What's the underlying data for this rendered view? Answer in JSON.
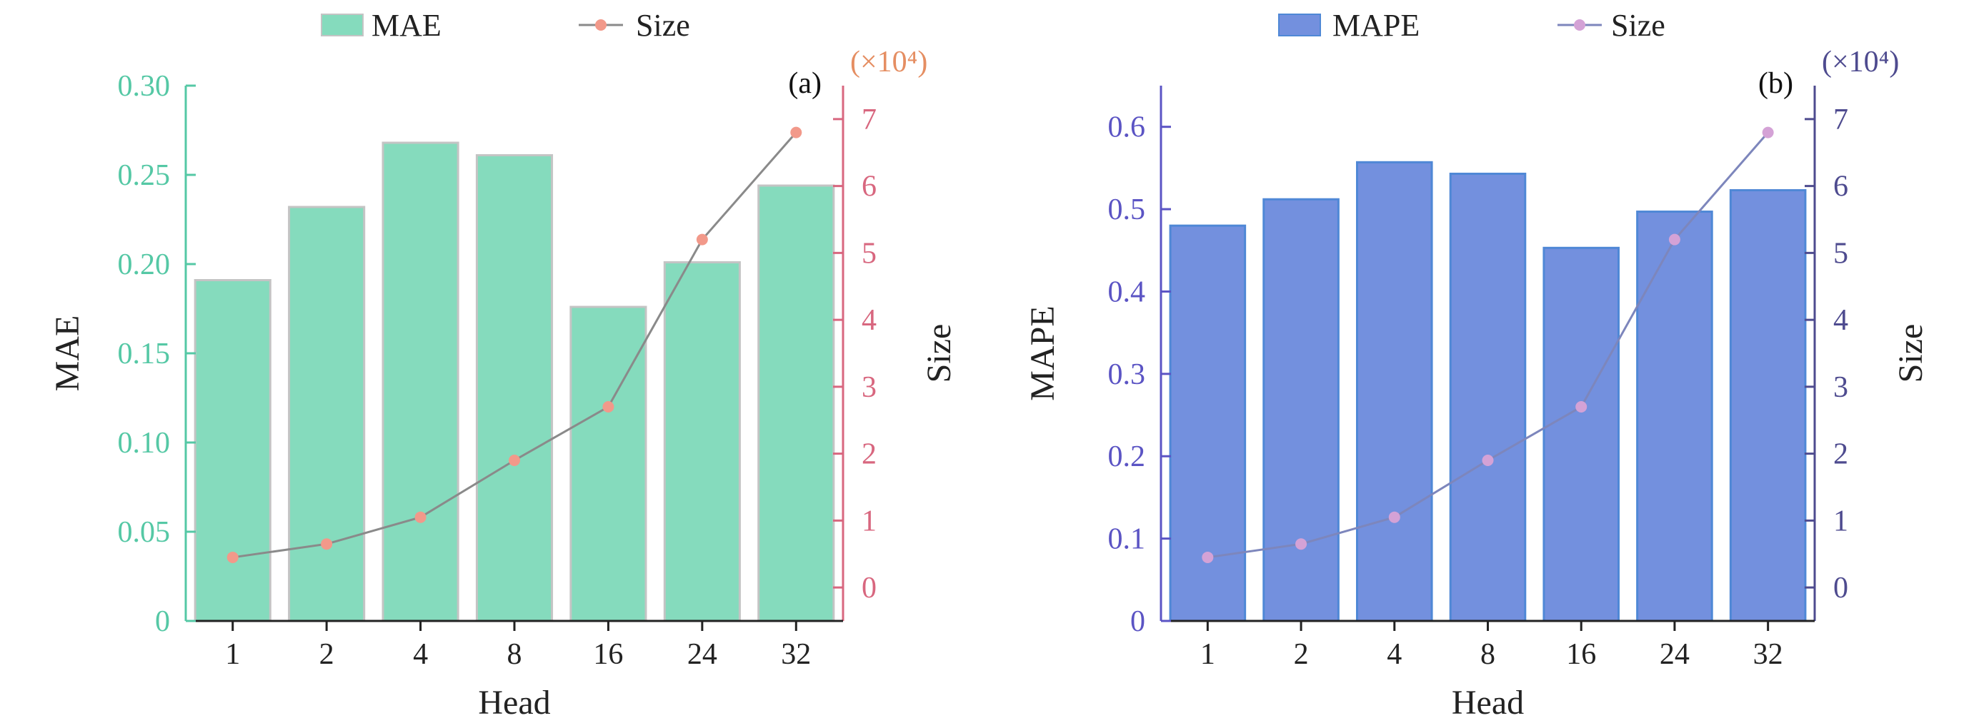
{
  "chart_data": [
    {
      "panel": "(a)",
      "type": "bar",
      "xlabel": "Head",
      "categories": [
        "1",
        "2",
        "4",
        "8",
        "16",
        "24",
        "32"
      ],
      "legend": {
        "bar_label": "MAE",
        "line_label": "Size",
        "position": "top"
      },
      "left_axis": {
        "label": "MAE",
        "ylim": [
          0,
          0.3
        ],
        "ticks": [
          "0",
          "0.05",
          "0.10",
          "0.15",
          "0.20",
          "0.25",
          "0.30"
        ],
        "tick_values": [
          0,
          0.05,
          0.1,
          0.15,
          0.2,
          0.25,
          0.3
        ]
      },
      "right_axis": {
        "label": "Size",
        "unit": "(×10⁴)",
        "ylim": [
          -0.5,
          7.5
        ],
        "ticks": [
          "0",
          "1",
          "2",
          "3",
          "4",
          "5",
          "6",
          "7"
        ],
        "tick_values": [
          0,
          1,
          2,
          3,
          4,
          5,
          6,
          7
        ]
      },
      "series": [
        {
          "name": "MAE",
          "kind": "bar",
          "axis": "left",
          "values": [
            0.191,
            0.232,
            0.268,
            0.261,
            0.176,
            0.201,
            0.244
          ]
        },
        {
          "name": "Size",
          "kind": "line",
          "axis": "right",
          "values": [
            0.45,
            0.65,
            1.05,
            1.9,
            2.7,
            5.2,
            6.8
          ]
        }
      ],
      "colors": {
        "bar_fill": "#85dbbd",
        "bar_edge": "#c4c4c4",
        "line": "#8a8a8a",
        "marker": "#f2998a",
        "left_axis": "#55c8a5",
        "right_axis": "#d8677f",
        "right_unit": "#e58e62"
      },
      "grid": false
    },
    {
      "panel": "(b)",
      "type": "bar",
      "xlabel": "Head",
      "categories": [
        "1",
        "2",
        "4",
        "8",
        "16",
        "24",
        "32"
      ],
      "legend": {
        "bar_label": "MAPE",
        "line_label": "Size",
        "position": "top"
      },
      "left_axis": {
        "label": "MAPE",
        "ylim": [
          0,
          0.65
        ],
        "ticks": [
          "0",
          "0.1",
          "0.2",
          "0.3",
          "0.4",
          "0.5",
          "0.6"
        ],
        "tick_values": [
          0,
          0.1,
          0.2,
          0.3,
          0.4,
          0.5,
          0.6
        ]
      },
      "right_axis": {
        "label": "Size",
        "unit": "(×10⁴)",
        "ylim": [
          -0.5,
          7.5
        ],
        "ticks": [
          "0",
          "1",
          "2",
          "3",
          "4",
          "5",
          "6",
          "7"
        ],
        "tick_values": [
          0,
          1,
          2,
          3,
          4,
          5,
          6,
          7
        ]
      },
      "series": [
        {
          "name": "MAPE",
          "kind": "bar",
          "axis": "left",
          "values": [
            0.48,
            0.512,
            0.557,
            0.543,
            0.453,
            0.497,
            0.523
          ]
        },
        {
          "name": "Size",
          "kind": "line",
          "axis": "right",
          "values": [
            0.45,
            0.65,
            1.05,
            1.9,
            2.7,
            5.2,
            6.8
          ]
        }
      ],
      "colors": {
        "bar_fill": "#7390de",
        "bar_edge": "#4f88d6",
        "line": "#7d86bc",
        "marker": "#d4a2d6",
        "left_axis": "#5b54c4",
        "right_axis": "#4e4b8f",
        "right_unit": "#4e4b8f"
      },
      "grid": false
    }
  ]
}
